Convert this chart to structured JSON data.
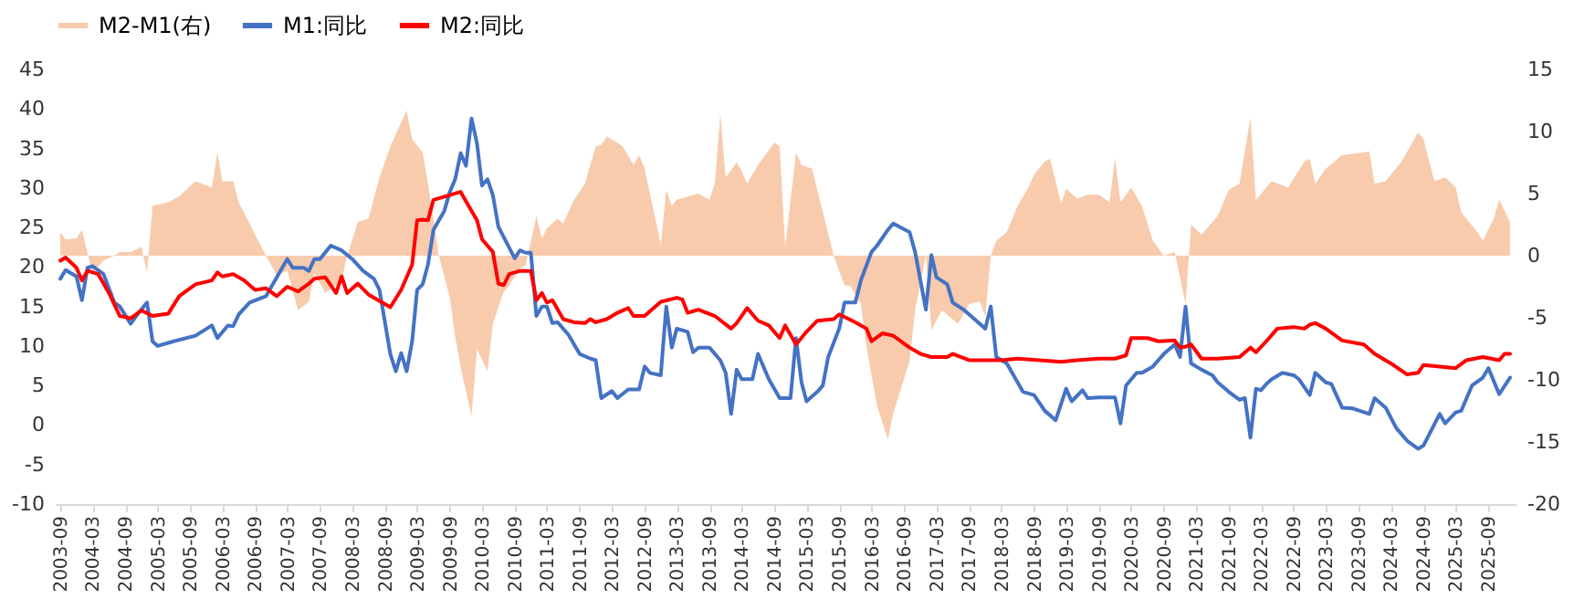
{
  "chart_data": {
    "type": "line",
    "legend": "top",
    "xlim": [
      "2003-08",
      "2026-02"
    ],
    "xticks": [
      "2003-09",
      "2004-03",
      "2004-09",
      "2005-03",
      "2005-09",
      "2006-03",
      "2006-09",
      "2007-03",
      "2007-09",
      "2008-03",
      "2008-09",
      "2009-03",
      "2009-09",
      "2010-03",
      "2010-09",
      "2011-03",
      "2011-09",
      "2012-03",
      "2012-09",
      "2013-03",
      "2013-09",
      "2014-03",
      "2014-09",
      "2015-03",
      "2015-09",
      "2016-03",
      "2016-09",
      "2017-03",
      "2017-09",
      "2018-03",
      "2018-09",
      "2019-03",
      "2019-09",
      "2020-03",
      "2020-09",
      "2021-03",
      "2021-09",
      "2022-03",
      "2022-09",
      "2023-03",
      "2023-09",
      "2024-03",
      "2024-09",
      "2025-03",
      "2025-09"
    ],
    "ylim": [
      -10,
      45
    ],
    "yticks": [
      -10,
      -5,
      0,
      5,
      10,
      15,
      20,
      25,
      30,
      35,
      40,
      45
    ],
    "y2lim": [
      -20,
      15
    ],
    "y2ticks": [
      -20,
      -15,
      -10,
      -5,
      0,
      5,
      10,
      15
    ],
    "series": [
      {
        "name": "M2-M1(右)",
        "type": "area",
        "axis": "y2",
        "color": "#f8cbad",
        "x": [
          "2003-09",
          "2003-10",
          "2003-12",
          "2004-01",
          "2004-02",
          "2004-03",
          "2004-05",
          "2004-07",
          "2004-08",
          "2004-10",
          "2004-12",
          "2005-01",
          "2005-02",
          "2005-05",
          "2005-07",
          "2005-10",
          "2006-01",
          "2006-02",
          "2006-03",
          "2006-05",
          "2006-06",
          "2006-09",
          "2006-11",
          "2007-01",
          "2007-03",
          "2007-05",
          "2007-07",
          "2007-08",
          "2007-10",
          "2008-01",
          "2008-02",
          "2008-04",
          "2008-06",
          "2008-08",
          "2008-10",
          "2009-01",
          "2009-02",
          "2009-04",
          "2009-05",
          "2009-07",
          "2009-09",
          "2009-10",
          "2009-11",
          "2010-01",
          "2010-02",
          "2010-04",
          "2010-05",
          "2010-07",
          "2010-08",
          "2010-10",
          "2010-11",
          "2011-01",
          "2011-02",
          "2011-03",
          "2011-05",
          "2011-06",
          "2011-08",
          "2011-10",
          "2011-12",
          "2012-01",
          "2012-02",
          "2012-04",
          "2012-05",
          "2012-07",
          "2012-08",
          "2012-09",
          "2012-12",
          "2013-01",
          "2013-02",
          "2013-03",
          "2013-07",
          "2013-09",
          "2013-10",
          "2013-11",
          "2013-12",
          "2014-02",
          "2014-03",
          "2014-04",
          "2014-06",
          "2014-09",
          "2014-10",
          "2014-11",
          "2015-01",
          "2015-02",
          "2015-04",
          "2015-05",
          "2015-08",
          "2015-10",
          "2015-11",
          "2016-01",
          "2016-02",
          "2016-04",
          "2016-06",
          "2016-07",
          "2016-10",
          "2016-11",
          "2017-01",
          "2017-02",
          "2017-04",
          "2017-07",
          "2017-09",
          "2017-11",
          "2017-12",
          "2018-01",
          "2018-02",
          "2018-04",
          "2018-06",
          "2018-08",
          "2018-09",
          "2018-11",
          "2018-12",
          "2019-02",
          "2019-03",
          "2019-05",
          "2019-07",
          "2019-09",
          "2019-11",
          "2019-12",
          "2020-01",
          "2020-03",
          "2020-05",
          "2020-07",
          "2020-09",
          "2020-11",
          "2021-01",
          "2021-02",
          "2021-04",
          "2021-07",
          "2021-09",
          "2021-11",
          "2022-01",
          "2022-02",
          "2022-04",
          "2022-05",
          "2022-08",
          "2022-11",
          "2022-12",
          "2023-01",
          "2023-03",
          "2023-06",
          "2023-10",
          "2023-11",
          "2023-12",
          "2024-02",
          "2024-05",
          "2024-08",
          "2024-09",
          "2024-11",
          "2025-01",
          "2025-03",
          "2025-04",
          "2025-07",
          "2025-08",
          "2025-10",
          "2025-11",
          "2026-01"
        ],
        "values": [
          1.9,
          1.3,
          1.4,
          2.1,
          0.2,
          -1.4,
          -0.4,
          0,
          0.3,
          0.3,
          0.7,
          -1.4,
          4.0,
          4.3,
          4.8,
          6.0,
          5.5,
          8.3,
          6.0,
          6.0,
          4.3,
          1.7,
          0,
          -1.6,
          -1.2,
          -4.4,
          -3.7,
          -1.4,
          -3.0,
          -2.0,
          0,
          2.7,
          3.0,
          6.3,
          8.8,
          11.7,
          9.4,
          8.3,
          5.8,
          0,
          -3.4,
          -6.5,
          -9.0,
          -12.9,
          -7.5,
          -9.3,
          -5.5,
          -2.9,
          -2.4,
          -1.0,
          -0.8,
          3.2,
          1.4,
          2.2,
          3.0,
          2.6,
          4.5,
          5.8,
          8.8,
          8.9,
          9.6,
          9.1,
          8.8,
          7.3,
          8.1,
          7.0,
          0.9,
          5.3,
          4.0,
          4.5,
          5.0,
          4.5,
          5.8,
          11.4,
          6.3,
          7.5,
          6.8,
          5.8,
          7.3,
          9.1,
          8.8,
          0.7,
          8.3,
          7.3,
          7.0,
          5.3,
          0,
          -2.4,
          -2.4,
          -3.9,
          -7.3,
          -12.1,
          -14.8,
          -12.7,
          -8.5,
          -4.4,
          0,
          -6.0,
          -4.4,
          -5.5,
          -3.9,
          -3.7,
          -4.9,
          0,
          1.2,
          1.9,
          4.0,
          5.5,
          6.5,
          7.6,
          7.8,
          4.2,
          5.4,
          4.6,
          4.9,
          4.9,
          4.3,
          7.9,
          4.3,
          5.5,
          4.0,
          1.2,
          0,
          0.3,
          -3.9,
          2.5,
          1.7,
          3.2,
          5.3,
          5.8,
          11.1,
          4.5,
          5.5,
          6.0,
          5.5,
          7.6,
          7.8,
          5.8,
          7.0,
          8.1,
          8.3,
          8.4,
          5.8,
          6.0,
          7.6,
          9.9,
          9.4,
          6.0,
          6.3,
          5.5,
          3.5,
          1.9,
          1.2,
          3.0,
          4.5,
          2.7
        ]
      },
      {
        "name": "M1:同比",
        "color": "#4472c4",
        "x": [
          "2003-09",
          "2003-10",
          "2003-12",
          "2004-01",
          "2004-02",
          "2004-03",
          "2004-05",
          "2004-07",
          "2004-08",
          "2004-10",
          "2004-11",
          "2005-01",
          "2005-02",
          "2005-03",
          "2005-06",
          "2005-10",
          "2006-01",
          "2006-02",
          "2006-04",
          "2006-05",
          "2006-06",
          "2006-08",
          "2006-11",
          "2007-02",
          "2007-03",
          "2007-04",
          "2007-06",
          "2007-07",
          "2007-08",
          "2007-09",
          "2007-11",
          "2008-01",
          "2008-03",
          "2008-05",
          "2008-07",
          "2008-08",
          "2008-09",
          "2008-10",
          "2008-11",
          "2008-12",
          "2009-01",
          "2009-02",
          "2009-03",
          "2009-04",
          "2009-05",
          "2009-06",
          "2009-08",
          "2009-09",
          "2009-10",
          "2009-11",
          "2009-12",
          "2010-01",
          "2010-02",
          "2010-03",
          "2010-04",
          "2010-05",
          "2010-06",
          "2010-09",
          "2010-10",
          "2010-11",
          "2010-12",
          "2011-01",
          "2011-02",
          "2011-03",
          "2011-04",
          "2011-05",
          "2011-07",
          "2011-09",
          "2011-11",
          "2011-12",
          "2012-01",
          "2012-03",
          "2012-04",
          "2012-06",
          "2012-08",
          "2012-09",
          "2012-10",
          "2012-12",
          "2013-01",
          "2013-02",
          "2013-03",
          "2013-05",
          "2013-06",
          "2013-07",
          "2013-09",
          "2013-11",
          "2013-12",
          "2014-01",
          "2014-02",
          "2014-03",
          "2014-05",
          "2014-06",
          "2014-08",
          "2014-10",
          "2014-12",
          "2015-01",
          "2015-02",
          "2015-03",
          "2015-05",
          "2015-06",
          "2015-07",
          "2015-09",
          "2015-10",
          "2015-12",
          "2016-01",
          "2016-03",
          "2016-04",
          "2016-06",
          "2016-07",
          "2016-10",
          "2016-11",
          "2017-01",
          "2017-02",
          "2017-03",
          "2017-05",
          "2017-06",
          "2017-08",
          "2017-10",
          "2017-12",
          "2018-01",
          "2018-02",
          "2018-04",
          "2018-05",
          "2018-07",
          "2018-09",
          "2018-11",
          "2019-01",
          "2019-03",
          "2019-04",
          "2019-06",
          "2019-07",
          "2019-09",
          "2019-12",
          "2020-01",
          "2020-02",
          "2020-04",
          "2020-05",
          "2020-07",
          "2020-09",
          "2020-11",
          "2020-12",
          "2021-01",
          "2021-02",
          "2021-04",
          "2021-06",
          "2021-07",
          "2021-09",
          "2021-11",
          "2021-12",
          "2022-01",
          "2022-02",
          "2022-03",
          "2022-04",
          "2022-05",
          "2022-07",
          "2022-09",
          "2022-10",
          "2022-12",
          "2023-01",
          "2023-03",
          "2023-04",
          "2023-06",
          "2023-08",
          "2023-11",
          "2023-12",
          "2024-02",
          "2024-04",
          "2024-06",
          "2024-08",
          "2024-09",
          "2024-12",
          "2025-01",
          "2025-03",
          "2025-04",
          "2025-06",
          "2025-08",
          "2025-09",
          "2025-11",
          "2026-01"
        ],
        "values": [
          18.5,
          19.6,
          18.8,
          15.8,
          19.9,
          20.1,
          19.1,
          15.5,
          15.0,
          12.8,
          13.8,
          15.5,
          10.6,
          10.0,
          10.6,
          11.3,
          12.6,
          11.0,
          12.6,
          12.5,
          14.0,
          15.5,
          16.3,
          19.9,
          21.0,
          19.9,
          19.9,
          19.5,
          21.0,
          21.0,
          22.7,
          22.1,
          21.0,
          19.5,
          18.5,
          17.1,
          13.0,
          9.0,
          6.8,
          9.1,
          6.8,
          10.6,
          17.1,
          17.8,
          20.3,
          24.7,
          27.1,
          29.5,
          31.1,
          34.4,
          32.8,
          38.8,
          35.6,
          30.3,
          31.1,
          29.1,
          25.1,
          21.1,
          22.1,
          21.8,
          21.8,
          13.8,
          15.0,
          15.0,
          12.9,
          13.0,
          11.4,
          9.0,
          8.4,
          8.2,
          3.4,
          4.3,
          3.4,
          4.5,
          4.5,
          7.4,
          6.6,
          6.3,
          15.0,
          9.8,
          12.2,
          11.8,
          9.2,
          9.8,
          9.8,
          8.2,
          6.6,
          1.4,
          7.0,
          5.8,
          5.8,
          9.0,
          5.8,
          3.4,
          3.4,
          11.0,
          5.4,
          3.0,
          4.2,
          5.0,
          8.6,
          12.2,
          15.5,
          15.5,
          18.3,
          21.9,
          22.7,
          24.7,
          25.5,
          24.4,
          21.9,
          14.6,
          21.5,
          18.7,
          17.8,
          15.5,
          14.6,
          13.4,
          12.2,
          15.0,
          8.6,
          7.8,
          6.6,
          4.2,
          3.8,
          1.8,
          0.6,
          4.6,
          3.0,
          4.4,
          3.4,
          3.5,
          3.5,
          0.2,
          5.0,
          6.6,
          6.6,
          7.4,
          9.0,
          10.2,
          8.6,
          15.0,
          7.8,
          7.0,
          6.3,
          5.4,
          4.2,
          3.2,
          3.4,
          -1.6,
          4.6,
          4.4,
          5.2,
          5.8,
          6.6,
          6.3,
          5.8,
          3.8,
          6.6,
          5.4,
          5.2,
          2.2,
          2.1,
          1.4,
          3.4,
          2.2,
          -0.4,
          -2.0,
          -3.0,
          -2.6,
          1.4,
          0.2,
          1.6,
          1.8,
          5.0,
          6.0,
          7.2,
          3.9,
          6.0
        ]
      },
      {
        "name": "M2:同比",
        "color": "#ff0000",
        "x": [
          "2003-09",
          "2003-10",
          "2003-12",
          "2004-01",
          "2004-02",
          "2004-04",
          "2004-06",
          "2004-08",
          "2004-10",
          "2004-12",
          "2005-02",
          "2005-05",
          "2005-07",
          "2005-10",
          "2006-01",
          "2006-02",
          "2006-03",
          "2006-05",
          "2006-07",
          "2006-09",
          "2006-11",
          "2007-01",
          "2007-03",
          "2007-05",
          "2007-07",
          "2007-08",
          "2007-10",
          "2007-12",
          "2008-01",
          "2008-02",
          "2008-04",
          "2008-06",
          "2008-08",
          "2008-10",
          "2008-12",
          "2009-02",
          "2009-03",
          "2009-04",
          "2009-05",
          "2009-06",
          "2009-09",
          "2009-11",
          "2009-12",
          "2010-02",
          "2010-03",
          "2010-05",
          "2010-06",
          "2010-07",
          "2010-08",
          "2010-10",
          "2010-12",
          "2011-01",
          "2011-02",
          "2011-03",
          "2011-04",
          "2011-06",
          "2011-08",
          "2011-10",
          "2011-11",
          "2011-12",
          "2012-02",
          "2012-04",
          "2012-06",
          "2012-07",
          "2012-09",
          "2012-12",
          "2013-03",
          "2013-04",
          "2013-05",
          "2013-07",
          "2013-10",
          "2014-01",
          "2014-02",
          "2014-04",
          "2014-06",
          "2014-08",
          "2014-10",
          "2014-11",
          "2015-01",
          "2015-03",
          "2015-05",
          "2015-08",
          "2015-09",
          "2015-12",
          "2016-02",
          "2016-03",
          "2016-05",
          "2016-07",
          "2016-10",
          "2016-12",
          "2017-02",
          "2017-05",
          "2017-06",
          "2017-09",
          "2017-12",
          "2018-03",
          "2018-06",
          "2018-10",
          "2019-02",
          "2019-05",
          "2019-09",
          "2019-12",
          "2020-02",
          "2020-03",
          "2020-06",
          "2020-08",
          "2020-11",
          "2020-12",
          "2021-01",
          "2021-02",
          "2021-04",
          "2021-07",
          "2021-11",
          "2022-01",
          "2022-02",
          "2022-04",
          "2022-06",
          "2022-09",
          "2022-11",
          "2022-12",
          "2023-01",
          "2023-03",
          "2023-06",
          "2023-10",
          "2023-12",
          "2024-03",
          "2024-06",
          "2024-08",
          "2024-09",
          "2024-12",
          "2025-03",
          "2025-05",
          "2025-08",
          "2025-11",
          "2025-12",
          "2026-01"
        ],
        "values": [
          20.8,
          21.2,
          19.9,
          18.3,
          19.5,
          19.1,
          16.7,
          13.8,
          13.5,
          14.5,
          13.8,
          14.1,
          16.3,
          17.8,
          18.3,
          19.3,
          18.8,
          19.1,
          18.3,
          17.1,
          17.3,
          16.3,
          17.5,
          16.9,
          17.9,
          18.5,
          18.7,
          16.7,
          18.8,
          16.7,
          17.9,
          16.5,
          15.7,
          14.9,
          17.1,
          20.3,
          25.9,
          26.0,
          25.9,
          28.5,
          29.1,
          29.5,
          28.3,
          25.9,
          23.5,
          21.9,
          17.9,
          17.7,
          19.1,
          19.5,
          19.5,
          15.8,
          16.7,
          15.5,
          15.8,
          13.4,
          13.0,
          12.9,
          13.4,
          13.0,
          13.4,
          14.2,
          14.8,
          13.8,
          13.8,
          15.6,
          16.1,
          15.9,
          14.2,
          14.6,
          13.8,
          12.2,
          12.9,
          14.8,
          13.2,
          12.6,
          11.0,
          12.6,
          10.2,
          11.8,
          13.2,
          13.4,
          14.0,
          13.0,
          12.2,
          10.6,
          11.6,
          11.3,
          9.8,
          9.0,
          8.6,
          8.6,
          9.0,
          8.2,
          8.2,
          8.2,
          8.4,
          8.2,
          8.0,
          8.2,
          8.4,
          8.4,
          8.8,
          11.0,
          11.0,
          10.6,
          10.7,
          9.8,
          9.9,
          10.2,
          8.4,
          8.4,
          8.6,
          9.8,
          9.2,
          10.6,
          12.2,
          12.4,
          12.2,
          12.7,
          12.9,
          12.2,
          10.7,
          10.2,
          9.0,
          7.8,
          6.4,
          6.6,
          7.6,
          7.4,
          7.2,
          8.2,
          8.6,
          8.2,
          9.0,
          9.0
        ]
      }
    ]
  }
}
